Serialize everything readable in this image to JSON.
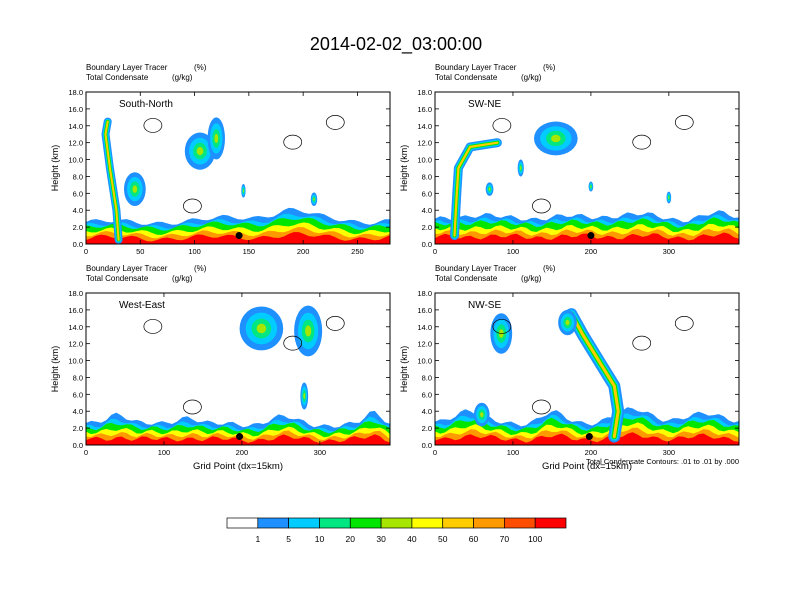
{
  "page": {
    "title": "2014-02-02_03:00:00",
    "footer_note": "Total Condensate Contours: .01 to .01 by .000"
  },
  "colorbar": {
    "colors": [
      "#ffffff",
      "#1e90ff",
      "#00ccff",
      "#00e680",
      "#00e600",
      "#a6e600",
      "#ffff00",
      "#ffcc00",
      "#ff9900",
      "#ff4d00",
      "#ff0000"
    ],
    "labels": [
      "1",
      "5",
      "10",
      "20",
      "30",
      "40",
      "50",
      "60",
      "70",
      "100"
    ]
  },
  "chart_data": [
    {
      "type": "heatmap",
      "panel_label": "South-North",
      "left_title": "Boundary Layer Tracer",
      "left_subtitle": "Total Condensate",
      "unit_title": "(%)",
      "unit_subtitle": "(g/kg)",
      "xlabel": "",
      "ylabel": "Height (km)",
      "xlim": [
        0,
        280
      ],
      "ylim": [
        0,
        18
      ],
      "x_ticks": [
        0,
        50,
        100,
        150,
        200,
        250
      ],
      "y_ticks": [
        "0.0",
        "2.0",
        "4.0",
        "6.0",
        "8.0",
        "10.0",
        "12.0",
        "14.0",
        "16.0",
        "18.0"
      ],
      "marker": {
        "x": 141,
        "y": 1.0
      }
    },
    {
      "type": "heatmap",
      "panel_label": "SW-NE",
      "left_title": "Boundary Layer Tracer",
      "left_subtitle": "Total Condensate",
      "unit_title": "(%)",
      "unit_subtitle": "(g/kg)",
      "xlabel": "",
      "ylabel": "Height (km)",
      "xlim": [
        0,
        390
      ],
      "ylim": [
        0,
        18
      ],
      "x_ticks": [
        0,
        100,
        200,
        300
      ],
      "y_ticks": [
        "0.0",
        "2.0",
        "4.0",
        "6.0",
        "8.0",
        "10.0",
        "12.0",
        "14.0",
        "16.0",
        "18.0"
      ],
      "marker": {
        "x": 200,
        "y": 1.0
      }
    },
    {
      "type": "heatmap",
      "panel_label": "West-East",
      "left_title": "Boundary Layer Tracer",
      "left_subtitle": "Total Condensate",
      "unit_title": "(%)",
      "unit_subtitle": "(g/kg)",
      "xlabel": "Grid Point (dx=15km)",
      "ylabel": "Height (km)",
      "xlim": [
        0,
        390
      ],
      "ylim": [
        0,
        18
      ],
      "x_ticks": [
        0,
        100,
        200,
        300
      ],
      "y_ticks": [
        "0.0",
        "2.0",
        "4.0",
        "6.0",
        "8.0",
        "10.0",
        "12.0",
        "14.0",
        "16.0",
        "18.0"
      ],
      "marker": {
        "x": 197,
        "y": 1.0
      }
    },
    {
      "type": "heatmap",
      "panel_label": "NW-SE",
      "left_title": "Boundary Layer Tracer",
      "left_subtitle": "Total Condensate",
      "unit_title": "(%)",
      "unit_subtitle": "(g/kg)",
      "xlabel": "Grid Point (dx=15km)",
      "ylabel": "Height (km)",
      "xlim": [
        0,
        390
      ],
      "ylim": [
        0,
        18
      ],
      "x_ticks": [
        0,
        100,
        200,
        300
      ],
      "y_ticks": [
        "0.0",
        "2.0",
        "4.0",
        "6.0",
        "8.0",
        "10.0",
        "12.0",
        "14.0",
        "16.0",
        "18.0"
      ],
      "marker": {
        "x": 198,
        "y": 1.0
      }
    }
  ]
}
